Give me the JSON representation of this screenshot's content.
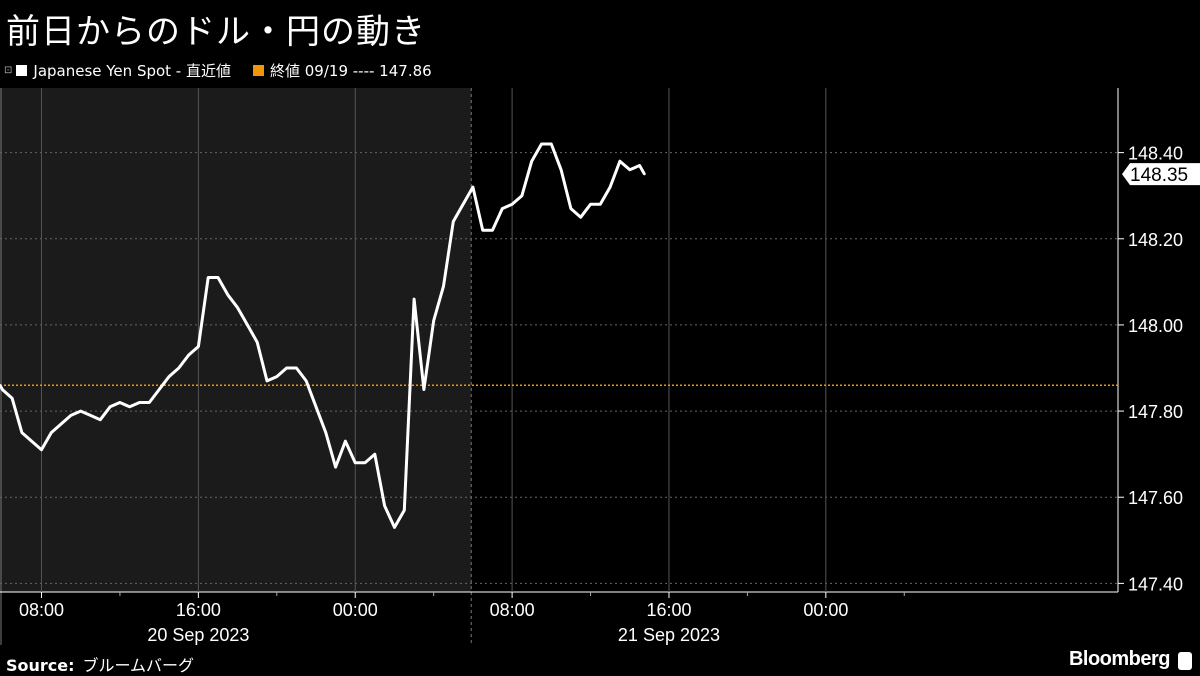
{
  "title": "前日からのドル・円の動き",
  "legend": {
    "series_label": "Japanese Yen Spot - 直近値",
    "reference_label": "終値 09/19 ---- 147.86",
    "series_color": "#ffffff",
    "reference_color": "#f0960a"
  },
  "source": {
    "label": "Source:",
    "text": "ブルームバーグ"
  },
  "brand": "Bloomberg",
  "chart_data": {
    "type": "line",
    "title": "前日からのドル・円の動き",
    "xlim": [
      "2023-09-20 05:53",
      "2023-09-22 14:54"
    ],
    "ylim": [
      147.38,
      148.55
    ],
    "yticks": [
      "147.40",
      "147.60",
      "147.80",
      "148.00",
      "148.20",
      "148.40"
    ],
    "xticks": [
      {
        "t": "2023-09-20 08:00",
        "label": "08:00"
      },
      {
        "t": "2023-09-20 16:00",
        "label": "16:00"
      },
      {
        "t": "2023-09-21 00:00",
        "label": "00:00"
      },
      {
        "t": "2023-09-21 08:00",
        "label": "08:00"
      },
      {
        "t": "2023-09-21 16:00",
        "label": "16:00"
      },
      {
        "t": "2023-09-22 00:00",
        "label": "00:00"
      }
    ],
    "date_labels": [
      {
        "t": "2023-09-20 16:00",
        "label": "20 Sep 2023"
      },
      {
        "t": "2023-09-21 16:00",
        "label": "21 Sep 2023"
      }
    ],
    "shaded_until": "2023-09-21 05:55",
    "reference_line": 147.86,
    "last_value": "148.35",
    "grid": true,
    "series": [
      {
        "name": "Japanese Yen Spot - 直近値",
        "points": [
          [
            "2023-09-20 05:53",
            147.86
          ],
          [
            "2023-09-20 06:00",
            147.85
          ],
          [
            "2023-09-20 06:30",
            147.83
          ],
          [
            "2023-09-20 07:00",
            147.75
          ],
          [
            "2023-09-20 07:30",
            147.73
          ],
          [
            "2023-09-20 08:00",
            147.71
          ],
          [
            "2023-09-20 08:30",
            147.75
          ],
          [
            "2023-09-20 09:00",
            147.77
          ],
          [
            "2023-09-20 09:30",
            147.79
          ],
          [
            "2023-09-20 10:00",
            147.8
          ],
          [
            "2023-09-20 10:30",
            147.79
          ],
          [
            "2023-09-20 11:00",
            147.78
          ],
          [
            "2023-09-20 11:30",
            147.81
          ],
          [
            "2023-09-20 12:00",
            147.82
          ],
          [
            "2023-09-20 12:30",
            147.81
          ],
          [
            "2023-09-20 13:00",
            147.82
          ],
          [
            "2023-09-20 13:30",
            147.82
          ],
          [
            "2023-09-20 14:00",
            147.85
          ],
          [
            "2023-09-20 14:30",
            147.88
          ],
          [
            "2023-09-20 15:00",
            147.9
          ],
          [
            "2023-09-20 15:30",
            147.93
          ],
          [
            "2023-09-20 16:00",
            147.95
          ],
          [
            "2023-09-20 16:30",
            148.11
          ],
          [
            "2023-09-20 17:00",
            148.11
          ],
          [
            "2023-09-20 17:30",
            148.07
          ],
          [
            "2023-09-20 18:00",
            148.04
          ],
          [
            "2023-09-20 18:30",
            148.0
          ],
          [
            "2023-09-20 19:00",
            147.96
          ],
          [
            "2023-09-20 19:30",
            147.87
          ],
          [
            "2023-09-20 20:00",
            147.88
          ],
          [
            "2023-09-20 20:30",
            147.9
          ],
          [
            "2023-09-20 21:00",
            147.9
          ],
          [
            "2023-09-20 21:30",
            147.87
          ],
          [
            "2023-09-20 22:00",
            147.81
          ],
          [
            "2023-09-20 22:30",
            147.75
          ],
          [
            "2023-09-20 23:00",
            147.67
          ],
          [
            "2023-09-20 23:30",
            147.73
          ],
          [
            "2023-09-21 00:00",
            147.68
          ],
          [
            "2023-09-21 00:30",
            147.68
          ],
          [
            "2023-09-21 01:00",
            147.7
          ],
          [
            "2023-09-21 01:30",
            147.58
          ],
          [
            "2023-09-21 02:00",
            147.53
          ],
          [
            "2023-09-21 02:30",
            147.57
          ],
          [
            "2023-09-21 03:00",
            148.06
          ],
          [
            "2023-09-21 03:30",
            147.85
          ],
          [
            "2023-09-21 04:00",
            148.01
          ],
          [
            "2023-09-21 04:30",
            148.09
          ],
          [
            "2023-09-21 05:00",
            148.24
          ],
          [
            "2023-09-21 05:30",
            148.28
          ],
          [
            "2023-09-21 06:00",
            148.32
          ],
          [
            "2023-09-21 06:30",
            148.22
          ],
          [
            "2023-09-21 07:00",
            148.22
          ],
          [
            "2023-09-21 07:30",
            148.27
          ],
          [
            "2023-09-21 08:00",
            148.28
          ],
          [
            "2023-09-21 08:30",
            148.3
          ],
          [
            "2023-09-21 09:00",
            148.38
          ],
          [
            "2023-09-21 09:30",
            148.42
          ],
          [
            "2023-09-21 10:00",
            148.42
          ],
          [
            "2023-09-21 10:30",
            148.36
          ],
          [
            "2023-09-21 11:00",
            148.27
          ],
          [
            "2023-09-21 11:30",
            148.25
          ],
          [
            "2023-09-21 12:00",
            148.28
          ],
          [
            "2023-09-21 12:30",
            148.28
          ],
          [
            "2023-09-21 13:00",
            148.32
          ],
          [
            "2023-09-21 13:30",
            148.38
          ],
          [
            "2023-09-21 14:00",
            148.36
          ],
          [
            "2023-09-21 14:30",
            148.37
          ],
          [
            "2023-09-21 14:45",
            148.35
          ]
        ]
      }
    ]
  }
}
